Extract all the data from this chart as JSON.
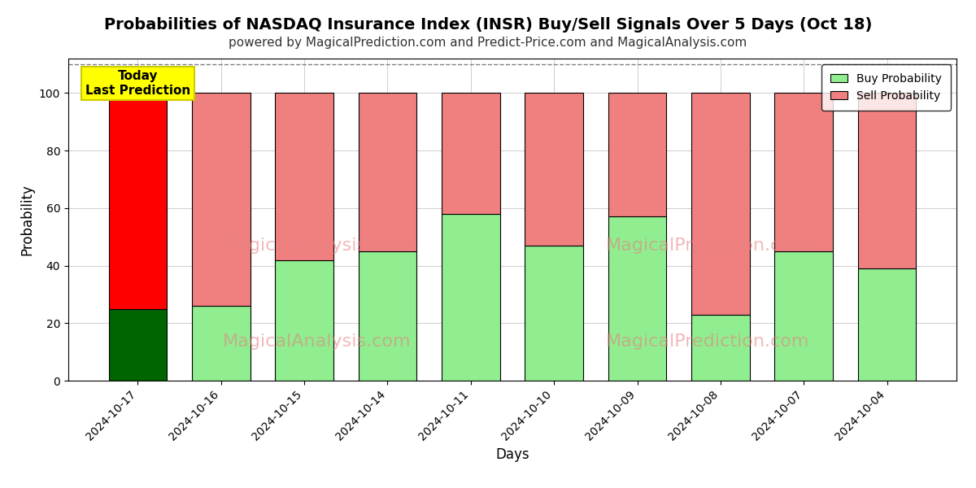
{
  "title": "Probabilities of NASDAQ Insurance Index (INSR) Buy/Sell Signals Over 5 Days (Oct 18)",
  "subtitle": "powered by MagicalPrediction.com and Predict-Price.com and MagicalAnalysis.com",
  "xlabel": "Days",
  "ylabel": "Probability",
  "categories": [
    "2024-10-17",
    "2024-10-16",
    "2024-10-15",
    "2024-10-14",
    "2024-10-11",
    "2024-10-10",
    "2024-10-09",
    "2024-10-08",
    "2024-10-07",
    "2024-10-04"
  ],
  "buy_values": [
    25,
    26,
    42,
    45,
    58,
    47,
    57,
    23,
    45,
    39
  ],
  "sell_values": [
    75,
    74,
    58,
    55,
    42,
    53,
    43,
    77,
    55,
    61
  ],
  "today_bar_buy_color": "#006400",
  "today_bar_sell_color": "#ff0000",
  "other_bar_buy_color": "#90EE90",
  "other_bar_sell_color": "#F08080",
  "bar_edge_color": "#000000",
  "annotation_box_color": "#ffff00",
  "annotation_text": "Today\nLast Prediction",
  "annotation_fontsize": 11,
  "ylim": [
    0,
    112
  ],
  "yticks": [
    0,
    20,
    40,
    60,
    80,
    100
  ],
  "dashed_line_y": 110,
  "title_fontsize": 14,
  "subtitle_fontsize": 11,
  "label_fontsize": 12,
  "tick_fontsize": 10,
  "legend_fontsize": 10,
  "watermark_color": "#E88080",
  "background_color": "#ffffff",
  "grid_color": "#bbbbbb"
}
